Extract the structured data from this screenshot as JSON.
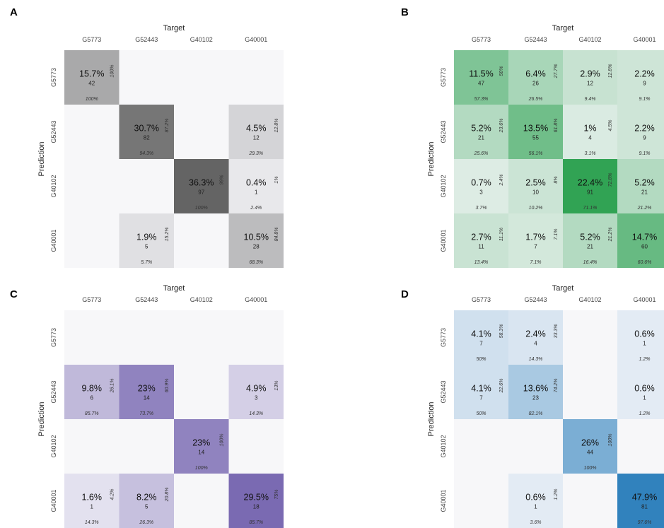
{
  "chart_data": [
    {
      "type": "heatmap",
      "panel_label": "A",
      "title": "",
      "xlabel": "Target",
      "ylabel": "Prediction",
      "x_categories": [
        "G5773",
        "G52443",
        "G40102",
        "G40001"
      ],
      "y_categories": [
        "G5773",
        "G52443",
        "G40102",
        "G40001"
      ],
      "base_color": "#646464",
      "max_count": 97,
      "cells": [
        {
          "row": 0,
          "col": 0,
          "pct": "15.7%",
          "count": 42,
          "row_pct": "100%",
          "col_pct": "100%"
        },
        {
          "row": 1,
          "col": 1,
          "pct": "30.7%",
          "count": 82,
          "row_pct": "87.2%",
          "col_pct": "94.3%"
        },
        {
          "row": 1,
          "col": 3,
          "pct": "4.5%",
          "count": 12,
          "row_pct": "12.8%",
          "col_pct": "29.3%"
        },
        {
          "row": 2,
          "col": 2,
          "pct": "36.3%",
          "count": 97,
          "row_pct": "99%",
          "col_pct": "100%"
        },
        {
          "row": 2,
          "col": 3,
          "pct": "0.4%",
          "count": 1,
          "row_pct": "1%",
          "col_pct": "2.4%"
        },
        {
          "row": 3,
          "col": 1,
          "pct": "1.9%",
          "count": 5,
          "row_pct": "15.2%",
          "col_pct": "5.7%"
        },
        {
          "row": 3,
          "col": 3,
          "pct": "10.5%",
          "count": 28,
          "row_pct": "84.8%",
          "col_pct": "68.3%"
        }
      ]
    },
    {
      "type": "heatmap",
      "panel_label": "B",
      "title": "",
      "xlabel": "Target",
      "ylabel": "Prediction",
      "x_categories": [
        "G5773",
        "G52443",
        "G40102",
        "G40001"
      ],
      "y_categories": [
        "G5773",
        "G52443",
        "G40102",
        "G40001"
      ],
      "base_color": "#31a354",
      "max_count": 91,
      "cells": [
        {
          "row": 0,
          "col": 0,
          "pct": "11.5%",
          "count": 47,
          "row_pct": "50%",
          "col_pct": "57.3%"
        },
        {
          "row": 0,
          "col": 1,
          "pct": "6.4%",
          "count": 26,
          "row_pct": "27.7%",
          "col_pct": "26.5%"
        },
        {
          "row": 0,
          "col": 2,
          "pct": "2.9%",
          "count": 12,
          "row_pct": "12.8%",
          "col_pct": "9.4%"
        },
        {
          "row": 0,
          "col": 3,
          "pct": "2.2%",
          "count": 9,
          "row_pct": "",
          "col_pct": "9.1%"
        },
        {
          "row": 1,
          "col": 0,
          "pct": "5.2%",
          "count": 21,
          "row_pct": "23.6%",
          "col_pct": "25.6%"
        },
        {
          "row": 1,
          "col": 1,
          "pct": "13.5%",
          "count": 55,
          "row_pct": "61.8%",
          "col_pct": "56.1%"
        },
        {
          "row": 1,
          "col": 2,
          "pct": "1%",
          "count": 4,
          "row_pct": "4.5%",
          "col_pct": "3.1%"
        },
        {
          "row": 1,
          "col": 3,
          "pct": "2.2%",
          "count": 9,
          "row_pct": "",
          "col_pct": "9.1%"
        },
        {
          "row": 2,
          "col": 0,
          "pct": "0.7%",
          "count": 3,
          "row_pct": "2.4%",
          "col_pct": "3.7%"
        },
        {
          "row": 2,
          "col": 1,
          "pct": "2.5%",
          "count": 10,
          "row_pct": "8%",
          "col_pct": "10.2%"
        },
        {
          "row": 2,
          "col": 2,
          "pct": "22.4%",
          "count": 91,
          "row_pct": "72.8%",
          "col_pct": "71.1%"
        },
        {
          "row": 2,
          "col": 3,
          "pct": "5.2%",
          "count": 21,
          "row_pct": "",
          "col_pct": "21.2%"
        },
        {
          "row": 3,
          "col": 0,
          "pct": "2.7%",
          "count": 11,
          "row_pct": "11.1%",
          "col_pct": "13.4%"
        },
        {
          "row": 3,
          "col": 1,
          "pct": "1.7%",
          "count": 7,
          "row_pct": "7.1%",
          "col_pct": "7.1%"
        },
        {
          "row": 3,
          "col": 2,
          "pct": "5.2%",
          "count": 21,
          "row_pct": "21.2%",
          "col_pct": "16.4%"
        },
        {
          "row": 3,
          "col": 3,
          "pct": "14.7%",
          "count": 60,
          "row_pct": "",
          "col_pct": "60.6%"
        }
      ]
    },
    {
      "type": "heatmap",
      "panel_label": "C",
      "title": "",
      "xlabel": "Target",
      "ylabel": "Prediction",
      "x_categories": [
        "G5773",
        "G52443",
        "G40102",
        "G40001"
      ],
      "y_categories": [
        "G5773",
        "G52443",
        "G40102",
        "G40001"
      ],
      "base_color": "#7a6ab2",
      "max_count": 18,
      "cells": [
        {
          "row": 1,
          "col": 0,
          "pct": "9.8%",
          "count": 6,
          "row_pct": "26.1%",
          "col_pct": "85.7%"
        },
        {
          "row": 1,
          "col": 1,
          "pct": "23%",
          "count": 14,
          "row_pct": "60.9%",
          "col_pct": "73.7%"
        },
        {
          "row": 1,
          "col": 3,
          "pct": "4.9%",
          "count": 3,
          "row_pct": "13%",
          "col_pct": "14.3%"
        },
        {
          "row": 2,
          "col": 2,
          "pct": "23%",
          "count": 14,
          "row_pct": "100%",
          "col_pct": "100%"
        },
        {
          "row": 3,
          "col": 0,
          "pct": "1.6%",
          "count": 1,
          "row_pct": "4.2%",
          "col_pct": "14.3%"
        },
        {
          "row": 3,
          "col": 1,
          "pct": "8.2%",
          "count": 5,
          "row_pct": "20.8%",
          "col_pct": "26.3%"
        },
        {
          "row": 3,
          "col": 3,
          "pct": "29.5%",
          "count": 18,
          "row_pct": "75%",
          "col_pct": "85.7%"
        }
      ]
    },
    {
      "type": "heatmap",
      "panel_label": "D",
      "title": "",
      "xlabel": "Target",
      "ylabel": "Prediction",
      "x_categories": [
        "G5773",
        "G52443",
        "G40102",
        "G40001"
      ],
      "y_categories": [
        "G5773",
        "G52443",
        "G40102",
        "G40001"
      ],
      "base_color": "#3182bd",
      "max_count": 81,
      "cells": [
        {
          "row": 0,
          "col": 0,
          "pct": "4.1%",
          "count": 7,
          "row_pct": "58.3%",
          "col_pct": "50%"
        },
        {
          "row": 0,
          "col": 1,
          "pct": "2.4%",
          "count": 4,
          "row_pct": "33.3%",
          "col_pct": "14.3%"
        },
        {
          "row": 0,
          "col": 3,
          "pct": "0.6%",
          "count": 1,
          "row_pct": "",
          "col_pct": "1.2%"
        },
        {
          "row": 1,
          "col": 0,
          "pct": "4.1%",
          "count": 7,
          "row_pct": "22.6%",
          "col_pct": "50%"
        },
        {
          "row": 1,
          "col": 1,
          "pct": "13.6%",
          "count": 23,
          "row_pct": "74.2%",
          "col_pct": "82.1%"
        },
        {
          "row": 1,
          "col": 3,
          "pct": "0.6%",
          "count": 1,
          "row_pct": "",
          "col_pct": "1.2%"
        },
        {
          "row": 2,
          "col": 2,
          "pct": "26%",
          "count": 44,
          "row_pct": "100%",
          "col_pct": "100%"
        },
        {
          "row": 3,
          "col": 1,
          "pct": "0.6%",
          "count": 1,
          "row_pct": "1.2%",
          "col_pct": "3.6%"
        },
        {
          "row": 3,
          "col": 3,
          "pct": "47.9%",
          "count": 81,
          "row_pct": "",
          "col_pct": "97.6%"
        }
      ]
    }
  ]
}
